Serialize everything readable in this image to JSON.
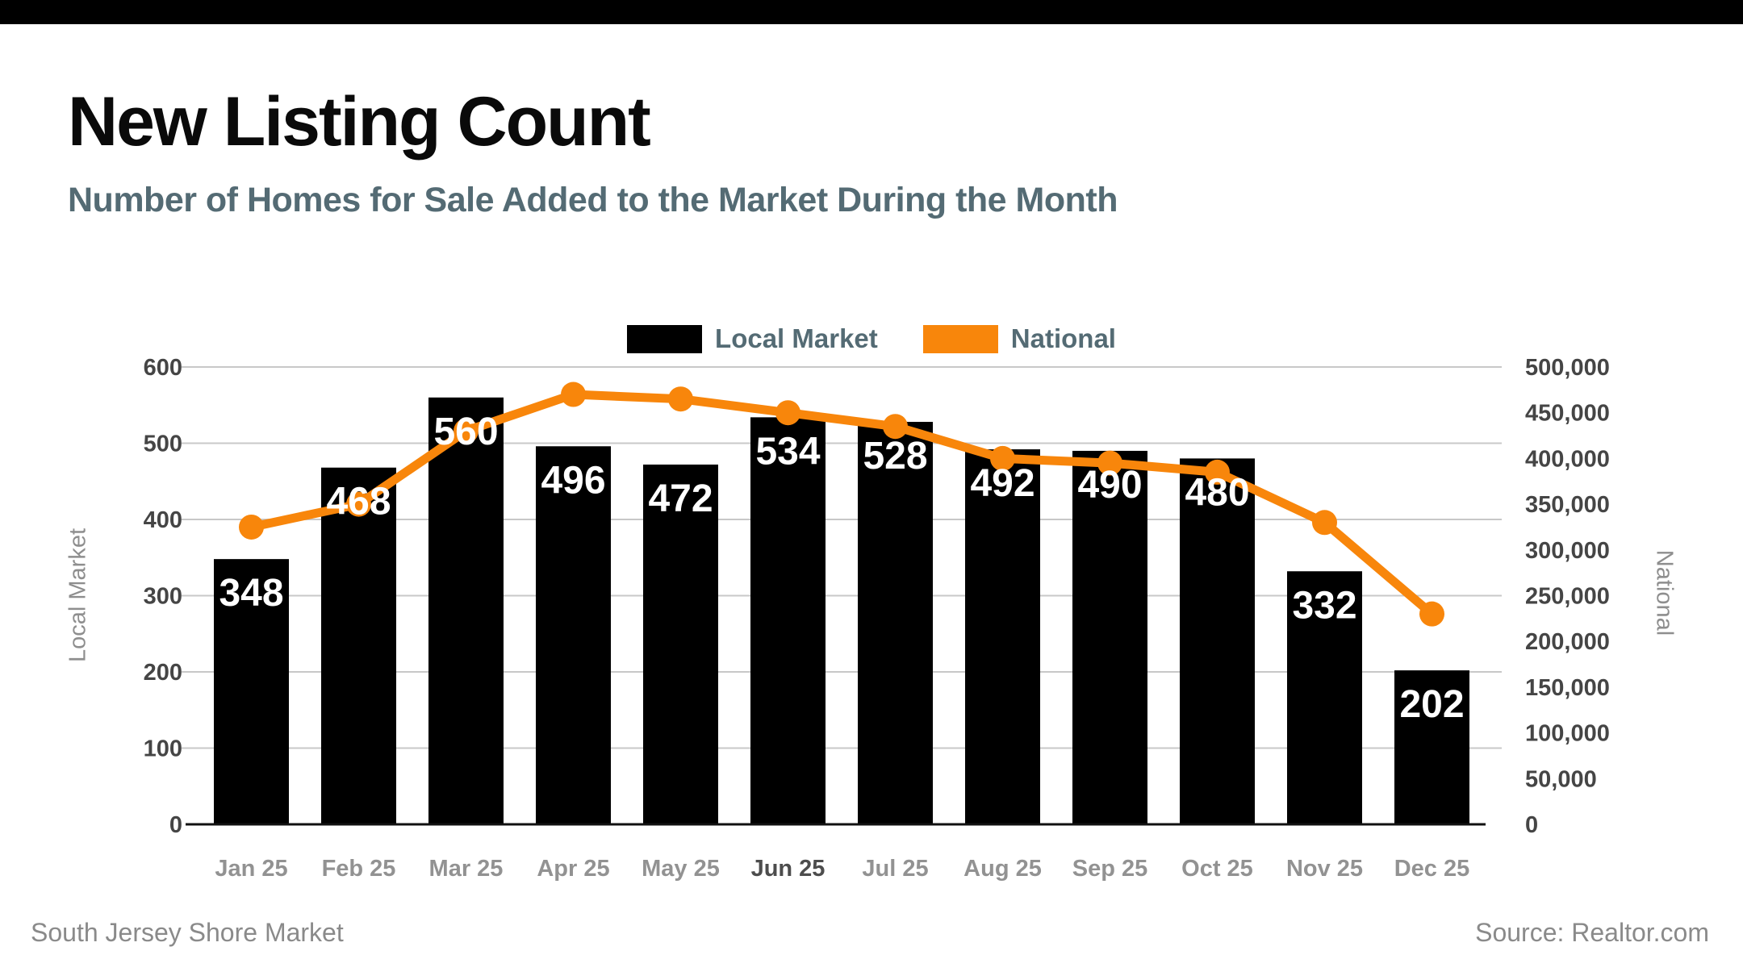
{
  "header": {
    "title": "New Listing Count",
    "subtitle": "Number of Homes for Sale Added to the Market During the Month"
  },
  "legend": [
    {
      "label": "Local Market",
      "color": "#000000"
    },
    {
      "label": "National",
      "color": "#F8860B"
    }
  ],
  "footer": {
    "left": "South Jersey Shore Market",
    "right": "Source: Realtor.com"
  },
  "colors": {
    "topbar": "#000000",
    "title": "#0A0A0A",
    "subtitle_slate": "#546B74",
    "bar_black": "#000000",
    "line_orange": "#F8860B",
    "gridline": "#C8C8C8",
    "axis_tick_text": "#454545",
    "month_text": "#929292",
    "month_text_highlight": "#4D4D4D",
    "axis_title_text": "#8E8E8E",
    "bar_value_text": "#FFFFFF",
    "baseline": "#111111"
  },
  "chart_data": {
    "type": "bar",
    "subtype": "bar-and-line-dual-axis",
    "categories": [
      "Jan 25",
      "Feb 25",
      "Mar 25",
      "Apr 25",
      "May 25",
      "Jun 25",
      "Jul 25",
      "Aug 25",
      "Sep 25",
      "Oct 25",
      "Nov 25",
      "Dec 25"
    ],
    "highlighted_category": "Jun 25",
    "series": [
      {
        "name": "Local Market",
        "type": "bar",
        "axis": "left",
        "color": "#000000",
        "values": [
          348,
          468,
          560,
          496,
          472,
          534,
          528,
          492,
          490,
          480,
          332,
          202
        ],
        "data_labels": "inside-top, white bold"
      },
      {
        "name": "National",
        "type": "line",
        "axis": "right",
        "color": "#F8860B",
        "values": [
          325000,
          350000,
          430000,
          470000,
          465000,
          450000,
          435000,
          400000,
          395000,
          385000,
          330000,
          230000
        ],
        "markers": "filled-circle"
      }
    ],
    "left_axis": {
      "title": "Local Market",
      "min": 0,
      "max": 600,
      "step": 100,
      "tick_labels": [
        "0",
        "100",
        "200",
        "300",
        "400",
        "500",
        "600"
      ]
    },
    "right_axis": {
      "title": "National",
      "min": 0,
      "max": 500000,
      "step": 50000,
      "tick_labels": [
        "0",
        "50,000",
        "100,000",
        "150,000",
        "200,000",
        "250,000",
        "300,000",
        "350,000",
        "400,000",
        "450,000",
        "500,000"
      ]
    },
    "grid": "horizontal-only",
    "legend_position": "top-center"
  }
}
